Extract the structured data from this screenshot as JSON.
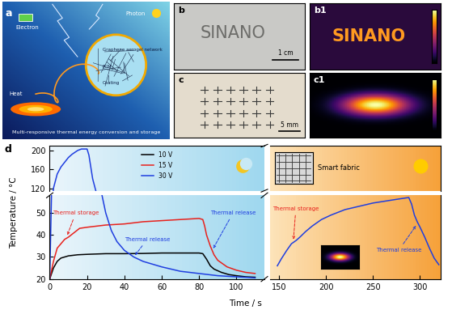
{
  "panels": {
    "a": {
      "label": "a",
      "texts": {
        "electron": "Electron",
        "photon": "Photon",
        "heat": "Heat",
        "network": "Graphene aerogel network",
        "pcm": "PCM",
        "coating": "Coating",
        "caption": "Multi-responsive thermal energy conversion and storage"
      }
    },
    "b": {
      "label": "b",
      "text": "SINANO",
      "scale_bar": "1 cm"
    },
    "b1": {
      "label": "b1",
      "text": "SINANO"
    },
    "c": {
      "label": "c",
      "scale_bar": "5 mm"
    },
    "c1": {
      "label": "c1"
    },
    "d": {
      "label": "d",
      "inset_label": "Smart fabric"
    }
  },
  "chart_data": {
    "type": "line",
    "xlabel": "Time / s",
    "ylabel": "Temperature / °C",
    "xlim": [
      [
        0,
        115
      ],
      [
        140,
        322
      ]
    ],
    "xticks": [
      [
        0,
        20,
        40,
        60,
        80,
        100
      ],
      [
        150,
        200,
        250,
        300
      ]
    ],
    "ylim": [
      [
        20,
        58
      ],
      [
        115,
        210
      ]
    ],
    "yticks": [
      [
        20,
        30,
        40,
        50
      ],
      [
        120,
        160,
        200
      ]
    ],
    "legend": "upper center",
    "series": [
      {
        "name": "10 V",
        "color": "#000000",
        "x": [
          0,
          2,
          4,
          6,
          10,
          15,
          20,
          30,
          40,
          50,
          60,
          70,
          80,
          82,
          84,
          86,
          88,
          92,
          96,
          100,
          105,
          110
        ],
        "values": [
          20,
          25,
          28,
          29.5,
          30.5,
          31,
          31.2,
          31.5,
          31.5,
          31.6,
          31.8,
          31.8,
          31.8,
          31.5,
          29,
          26,
          24.5,
          23,
          22,
          21.5,
          21,
          20.8
        ]
      },
      {
        "name": "15 V",
        "color": "#e8211c",
        "x": [
          0,
          2,
          4,
          6,
          8,
          10,
          13,
          16,
          20,
          25,
          30,
          40,
          50,
          60,
          70,
          80,
          82,
          83,
          84,
          86,
          88,
          90,
          95,
          100,
          105,
          110
        ],
        "values": [
          20,
          28,
          34,
          36,
          38,
          39,
          41,
          43,
          43.5,
          44,
          44.5,
          45,
          46,
          46.5,
          47,
          47.5,
          47,
          44,
          40,
          35,
          31,
          28.5,
          25.5,
          24,
          23,
          22.5
        ]
      },
      {
        "name": "30 V",
        "color": "#1f3ee0",
        "x": [
          0,
          1,
          2,
          4,
          6,
          8,
          10,
          12,
          15,
          17,
          20,
          21,
          22,
          23,
          24,
          25,
          26,
          27,
          28,
          30,
          33,
          36,
          40,
          45,
          50,
          60,
          70,
          80,
          90,
          100,
          110
        ],
        "values": [
          20,
          60,
          120,
          150,
          165,
          175,
          185,
          192,
          200,
          203,
          203,
          190,
          165,
          140,
          125,
          110,
          90,
          70,
          58,
          50,
          42,
          37,
          33,
          30,
          28,
          25.5,
          23.5,
          22.5,
          21.5,
          21,
          20.5
        ]
      },
      {
        "color": "#1f3ee0",
        "x": [
          148,
          152,
          158,
          163,
          168,
          172,
          178,
          185,
          195,
          205,
          220,
          235,
          250,
          265,
          280,
          288,
          291,
          294,
          297,
          300,
          305,
          310,
          315,
          320
        ],
        "values": [
          26,
          29,
          33,
          36,
          37.5,
          39,
          41.5,
          44,
          47,
          49,
          51.5,
          53,
          54.5,
          55.5,
          56.5,
          57,
          54,
          49,
          46,
          43.5,
          39,
          34,
          29.5,
          26.5
        ]
      }
    ],
    "annotations": [
      {
        "text": "Thermal storage",
        "color": "#e8211c"
      },
      {
        "text": "Thermal release",
        "color": "#1f3ee0"
      },
      {
        "text": "Thermal release",
        "color": "#1f3ee0"
      },
      {
        "text": "Thermal storage",
        "color": "#e8211c"
      },
      {
        "text": "Thermal release",
        "color": "#1f3ee0"
      }
    ]
  }
}
